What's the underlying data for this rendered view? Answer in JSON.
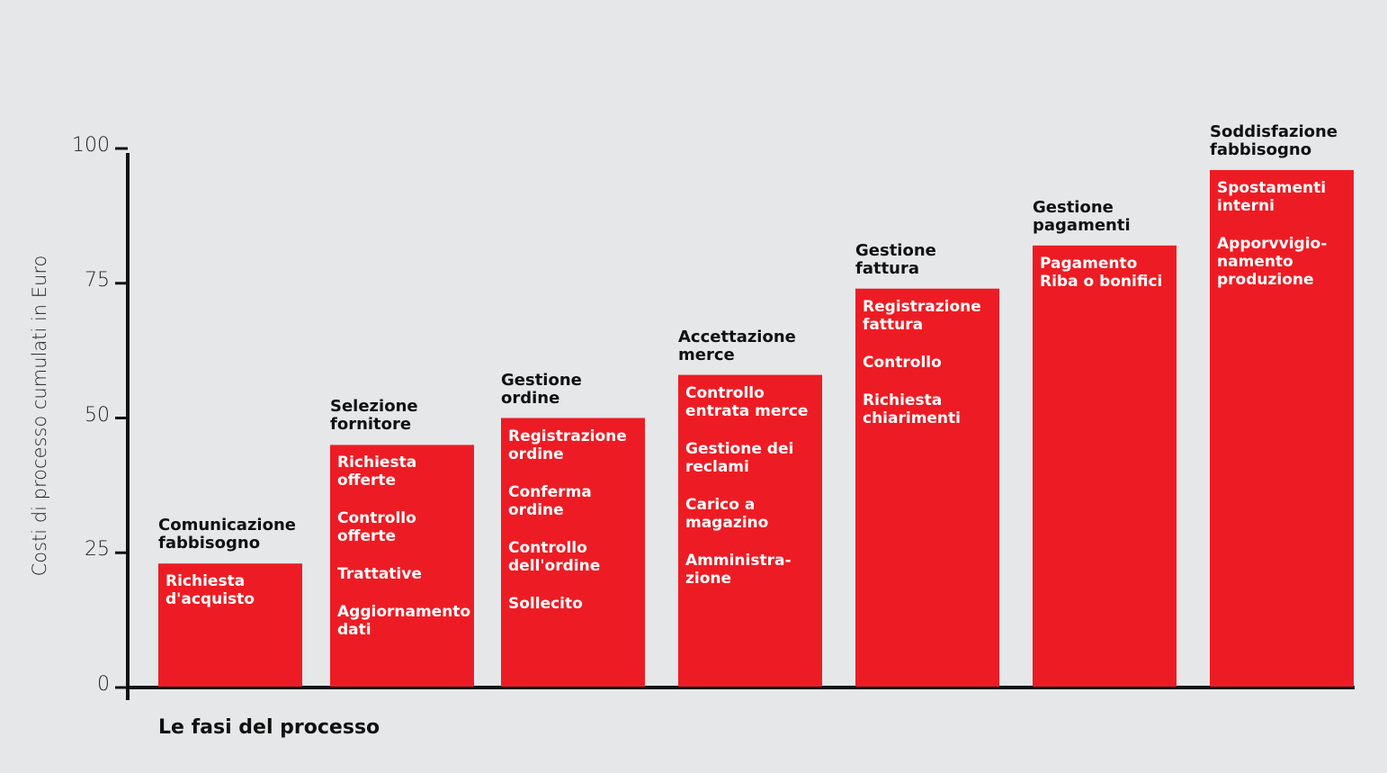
{
  "chart_data": {
    "type": "bar",
    "ylabel": "Costi di processo cumulati in Euro",
    "xlabel": "Le fasi del processo",
    "ylim": [
      0,
      100
    ],
    "yticks": [
      "0",
      "25",
      "50",
      "75",
      "100"
    ],
    "colors": {
      "bar": "#ed1c24",
      "axis": "#111111",
      "background": "#e6e7e8"
    },
    "categories": [
      "Comunicazione\nfabbisogno",
      "Selezione\nfornitore",
      "Gestione\nordine",
      "Accettazione\nmerce",
      "Gestione\nfattura",
      "Gestione\npagamenti",
      "Soddisfazione\nfabbisogno"
    ],
    "values": [
      23,
      45,
      50,
      58,
      74,
      82,
      96
    ],
    "activities": [
      [
        "Richiesta\nd'acquisto"
      ],
      [
        "Richiesta\nofferte",
        "Controllo\nofferte",
        "Trattative",
        "Aggiornamento\ndati"
      ],
      [
        "Registrazione\nordine",
        "Conferma\nordine",
        "Controllo\ndell'ordine",
        "Sollecito"
      ],
      [
        "Controllo\nentrata merce",
        "Gestione dei\nreclami",
        "Carico a\nmagazino",
        "Amministra-\nzione"
      ],
      [
        "Registrazione\nfattura",
        "Controllo",
        "Richiesta\nchiarimenti"
      ],
      [
        "Pagamento\nRiba o bonifici"
      ],
      [
        "Spostamenti\ninterni",
        "Apporvvigio-\nnamento\nproduzione"
      ]
    ]
  }
}
